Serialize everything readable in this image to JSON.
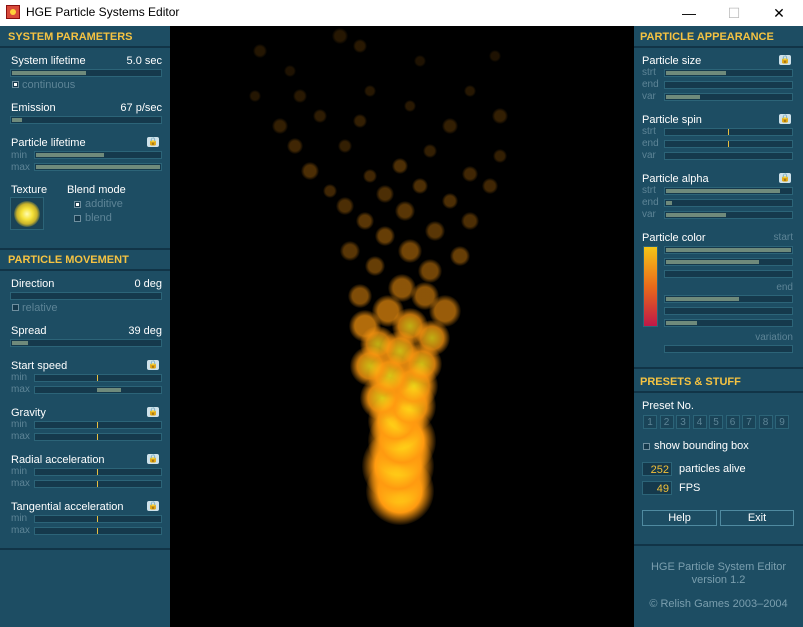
{
  "window": {
    "title": "HGE Particle Systems Editor",
    "minimize_glyph": "—",
    "maximize_glyph": "☐",
    "close_glyph": "✕"
  },
  "system": {
    "header": "SYSTEM PARAMETERS",
    "lifetime_label": "System lifetime",
    "lifetime_value": "5.0 sec",
    "lifetime_fraction": 0.5,
    "continuous_label": "continuous",
    "continuous_checked": true,
    "emission_label": "Emission",
    "emission_value": "67 p/sec",
    "emission_fraction": 0.07,
    "particle_lifetime_label": "Particle lifetime",
    "min_label": "min",
    "max_label": "max",
    "particle_lifetime_min_fraction": 0.55,
    "particle_lifetime_max_fraction": 1.0,
    "texture_label": "Texture",
    "blend_mode_label": "Blend mode",
    "additive_label": "additive",
    "additive_checked": true,
    "blend_label": "blend",
    "blend_checked": false
  },
  "movement": {
    "header": "PARTICLE MOVEMENT",
    "direction_label": "Direction",
    "direction_value": "0 deg",
    "relative_label": "relative",
    "spread_label": "Spread",
    "spread_value": "39 deg",
    "spread_fraction": 0.11,
    "start_speed_label": "Start speed",
    "gravity_label": "Gravity",
    "radial_label": "Radial acceleration",
    "tangential_label": "Tangential acceleration",
    "min_label": "min",
    "max_label": "max"
  },
  "appearance": {
    "header": "PARTICLE APPEARANCE",
    "size_label": "Particle size",
    "spin_label": "Particle spin",
    "alpha_label": "Particle alpha",
    "color_label": "Particle color",
    "start_label": "start",
    "end_label": "end",
    "variation_label": "variation",
    "strt_label": "strt",
    "end_short_label": "end",
    "var_label": "var",
    "size_strt_fraction": 0.48,
    "size_var_fraction": 0.27,
    "alpha_strt_fraction": 0.91,
    "alpha_end_fraction": 0.05,
    "alpha_var_fraction": 0.48,
    "color_start_fractions": [
      1.0,
      0.74,
      0.0
    ],
    "color_end_fractions": [
      0.58,
      0.0,
      0.25
    ],
    "color_variation_fraction": 0.0,
    "color_gradient": [
      "#f5c518",
      "#e86a1a",
      "#c01848"
    ]
  },
  "presets": {
    "header": "PRESETS & STUFF",
    "preset_label": "Preset No.",
    "numbers": [
      "1",
      "2",
      "3",
      "4",
      "5",
      "6",
      "7",
      "8",
      "9"
    ],
    "bounding_box_label": "show bounding box",
    "particles_alive_value": "252",
    "particles_alive_label": "particles alive",
    "fps_value": "49",
    "fps_label": "FPS",
    "help_label": "Help",
    "exit_label": "Exit"
  },
  "about": {
    "line1": "HGE Particle System Editor",
    "line2": "version 1.2",
    "line3": "© Relish Games 2003–2004"
  },
  "colors": {
    "panel_bg": "#1d4d63",
    "header_text": "#f5c342",
    "particle_core": "#ffe81a",
    "particle_glow": "#ff9a10"
  }
}
